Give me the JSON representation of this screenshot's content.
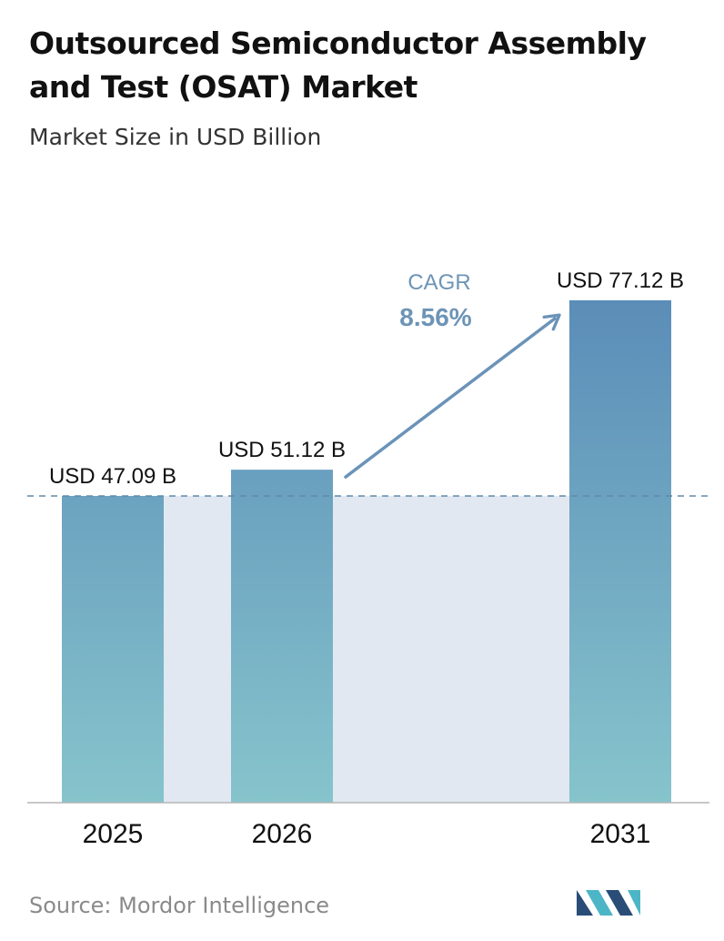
{
  "header": {
    "title": "Outsourced Semiconductor Assembly and Test (OSAT) Market",
    "subtitle": "Market Size in USD Billion"
  },
  "cagr": {
    "label": "CAGR",
    "value": "8.56%"
  },
  "footer": {
    "source": "Source:  Mordor Intelligence"
  },
  "colors": {
    "bar_top": "#5b8db8",
    "bar_bottom": "#86c4cc",
    "band": "#e1e8f1",
    "cagr": "#6d94b6",
    "arrow": "#6b93b8",
    "dashed": "#5e8aaa",
    "logo_dark": "#2a4d78",
    "logo_teal": "#4db6c6"
  },
  "chart_data": {
    "type": "bar",
    "title": "Outsourced Semiconductor Assembly and Test (OSAT) Market",
    "subtitle": "Market Size in USD Billion",
    "categories": [
      "2025",
      "2026",
      "2031"
    ],
    "values": [
      47.09,
      51.12,
      77.12
    ],
    "data_labels": [
      "USD 47.09 B",
      "USD 51.12 B",
      "USD 77.12 B"
    ],
    "reference_line": 47.09,
    "ylim": [
      0,
      77.12
    ],
    "grid": false,
    "legend": "none"
  }
}
